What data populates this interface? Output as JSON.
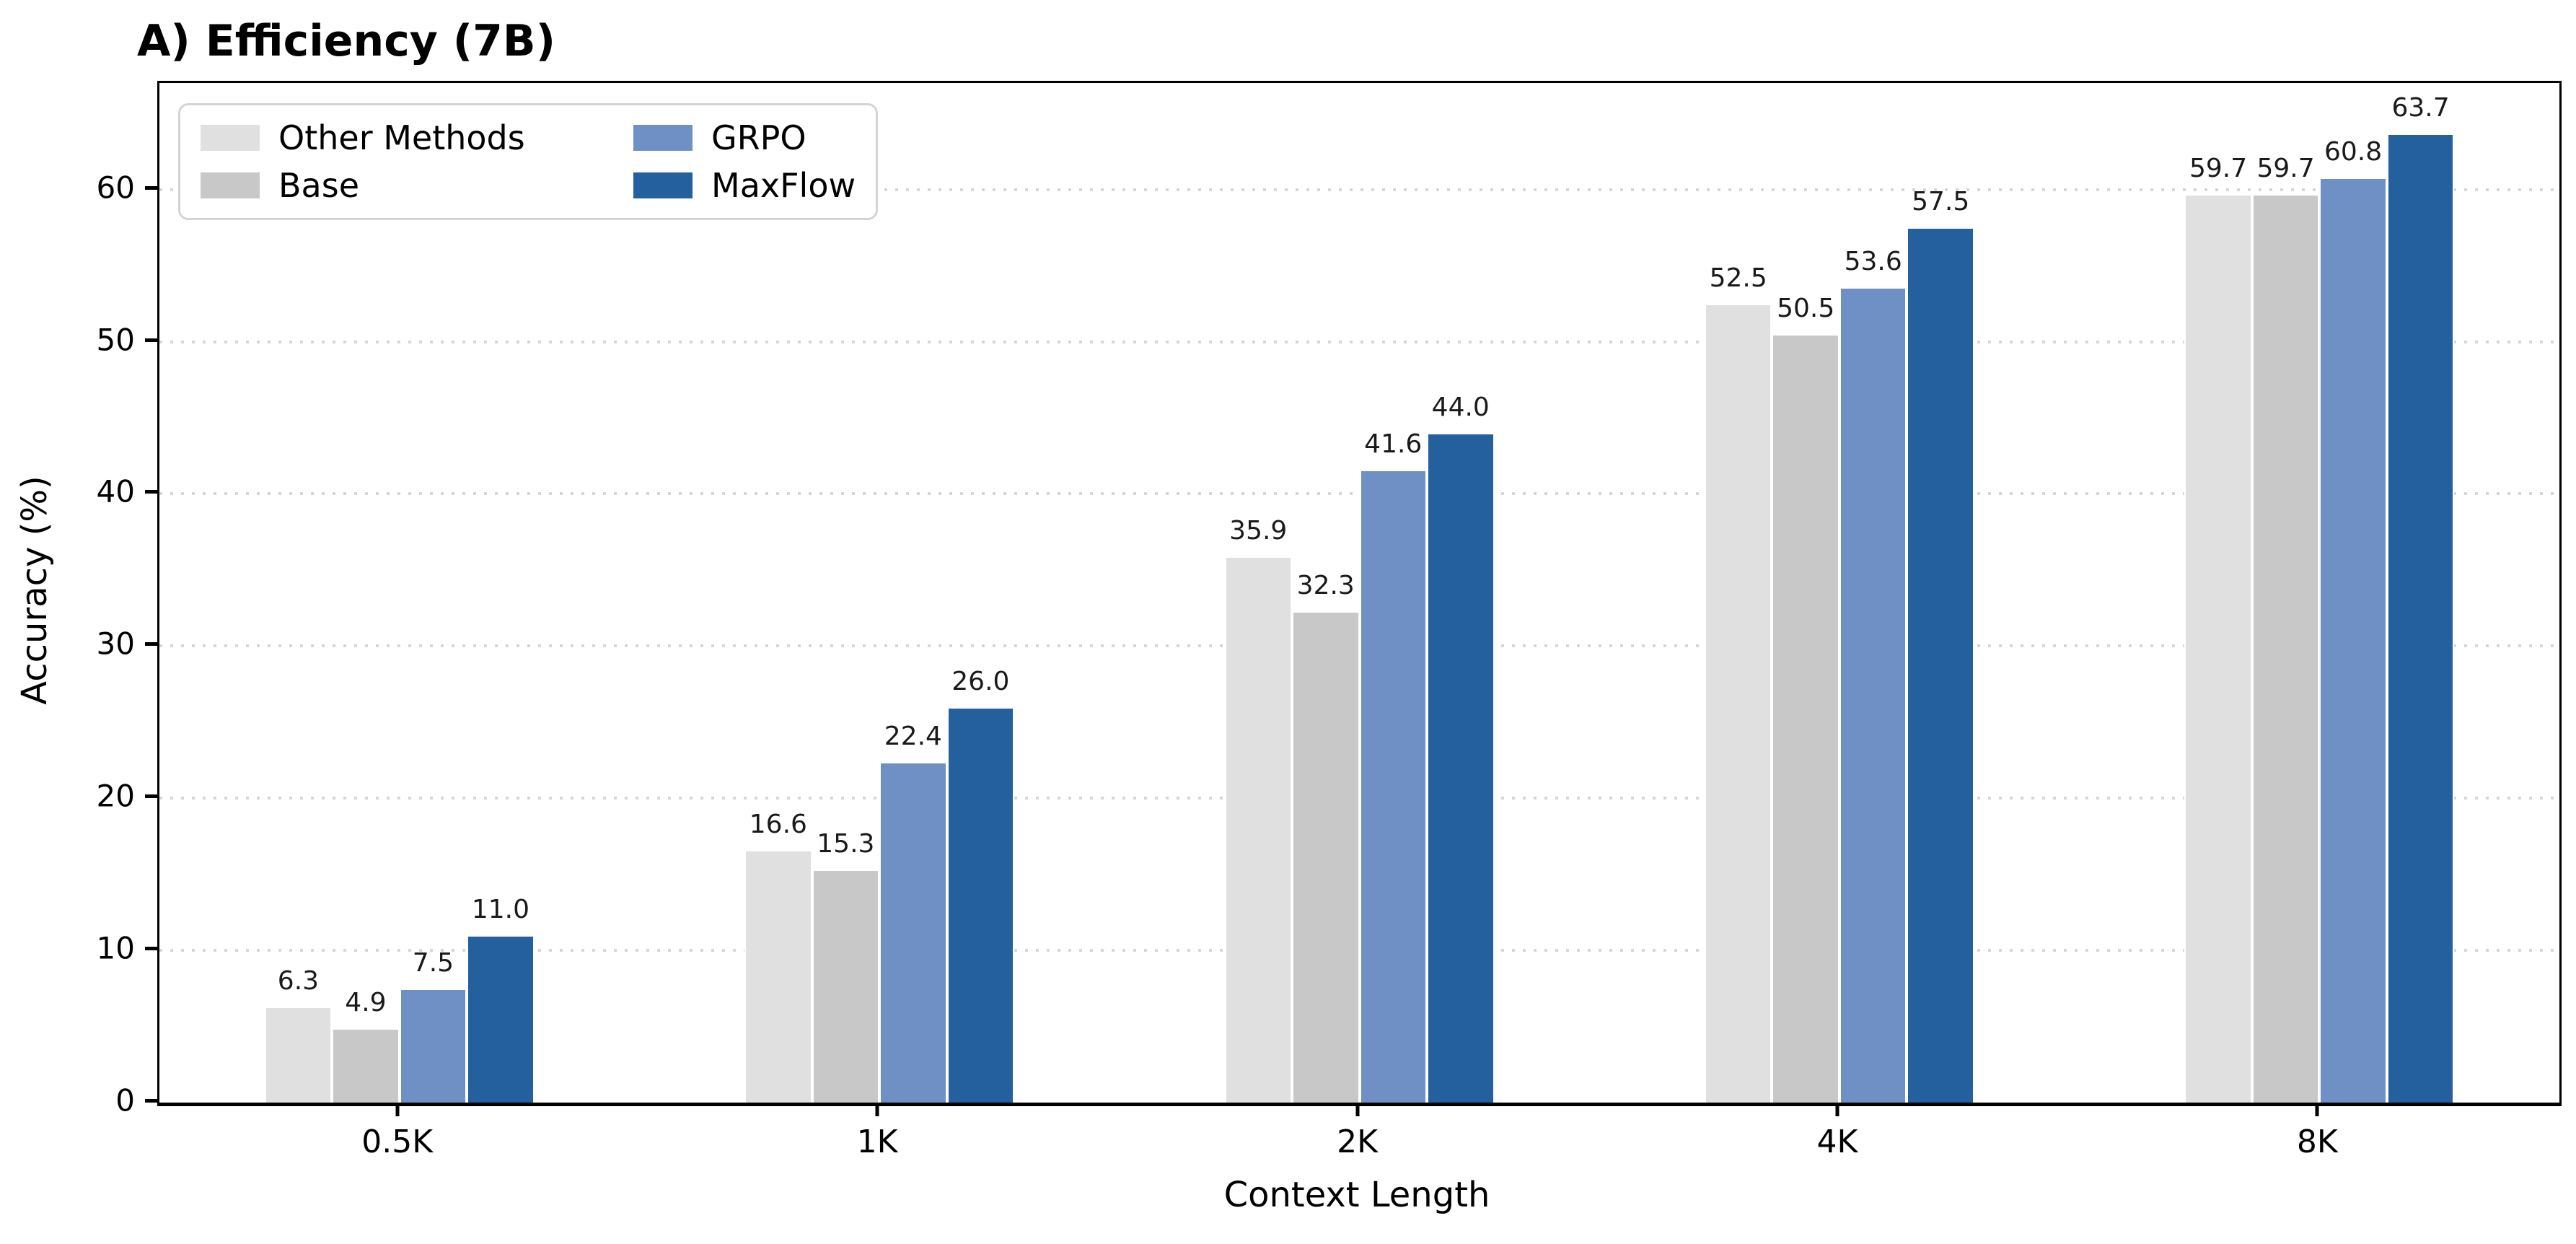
{
  "chart_data": {
    "type": "bar",
    "title": "A) Efficiency (7B)",
    "xlabel": "Context Length",
    "ylabel": "Accuracy (%)",
    "categories": [
      "0.5K",
      "1K",
      "2K",
      "4K",
      "8K"
    ],
    "series": [
      {
        "name": "Other Methods",
        "color": "#e0e0e0",
        "values": [
          6.3,
          16.6,
          35.9,
          52.5,
          59.7
        ]
      },
      {
        "name": "Base",
        "color": "#c8c8c8",
        "values": [
          4.9,
          15.3,
          32.3,
          50.5,
          59.7
        ]
      },
      {
        "name": "GRPO",
        "color": "#6e90c4",
        "values": [
          7.5,
          22.4,
          41.6,
          53.6,
          60.8
        ]
      },
      {
        "name": "MaxFlow",
        "color": "#24609e",
        "values": [
          11.0,
          26.0,
          44.0,
          57.5,
          63.7
        ]
      }
    ],
    "value_label_decimals": 1,
    "yticks": [
      0,
      10,
      20,
      30,
      40,
      50,
      60
    ],
    "ylim": [
      0,
      67
    ],
    "grid": "horizontal-dotted",
    "gridline_color": "#d6d6d6",
    "legend_position": "upper-left",
    "axis_color": "#000000"
  }
}
